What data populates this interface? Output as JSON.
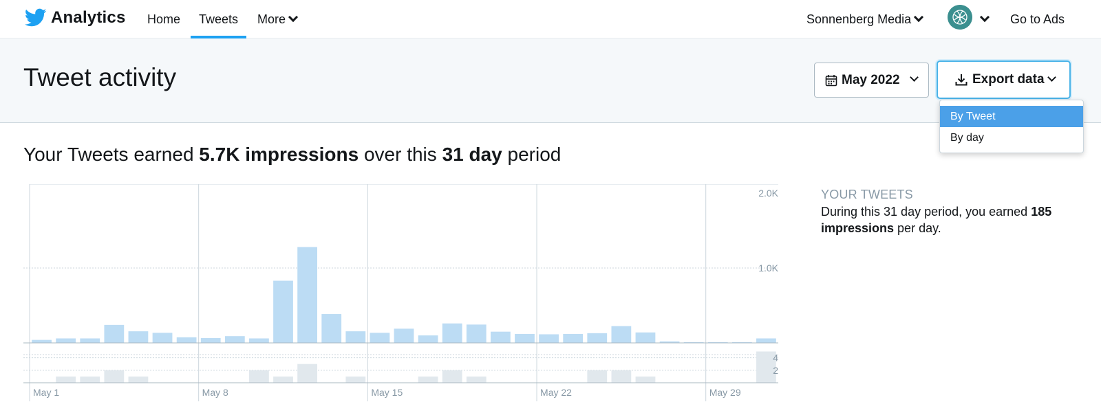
{
  "nav": {
    "brand": "Analytics",
    "brand_icon": "twitter-bird-icon",
    "accent_color": "#1da1f2",
    "items": [
      {
        "label": "Home"
      },
      {
        "label": "Tweets",
        "active": true
      },
      {
        "label": "More"
      }
    ],
    "account": "Sonnenberg Media",
    "go_to_ads": "Go to Ads"
  },
  "header": {
    "title": "Tweet activity",
    "month_label": "May 2022",
    "export_label": "Export data",
    "export_menu": [
      "By Tweet",
      "By day"
    ],
    "export_menu_selected": "By Tweet"
  },
  "summary": {
    "prefix": "Your Tweets earned ",
    "impressions": "5.7K impressions",
    "middle": " over this ",
    "period": "31 day",
    "suffix": " period"
  },
  "side": {
    "heading": "YOUR TWEETS",
    "text_prefix": "During this 31 day period, you earned ",
    "highlight": "185 impressions",
    "text_suffix": " per day."
  },
  "chart_data": {
    "type": "bar",
    "colors": {
      "impressions": "#bcdcf4",
      "tweets": "#e1e8ed"
    },
    "x_tick_labels": [
      "May 1",
      "May 8",
      "May 15",
      "May 22",
      "May 29"
    ],
    "days": 31,
    "series": [
      {
        "values": [
          40,
          60,
          60,
          240,
          155,
          135,
          75,
          65,
          90,
          60,
          830,
          1280,
          385,
          155,
          135,
          190,
          100,
          260,
          245,
          150,
          120,
          115,
          120,
          130,
          225,
          140,
          20,
          10,
          10,
          10,
          60
        ]
      },
      {
        "values": [
          0,
          1,
          1,
          2,
          1,
          0,
          0,
          0,
          0,
          2,
          1,
          3,
          0,
          1,
          0,
          0,
          1,
          2,
          1,
          0,
          0,
          0,
          0,
          2,
          2,
          1,
          0,
          0,
          0,
          0,
          5
        ]
      }
    ],
    "upper_ticks": [
      "2.0K",
      "1.0K"
    ],
    "upper_ylim": [
      0,
      2000
    ],
    "lower_ticks": [
      "4",
      "2"
    ],
    "lower_ylim": [
      0,
      5.6
    ]
  }
}
